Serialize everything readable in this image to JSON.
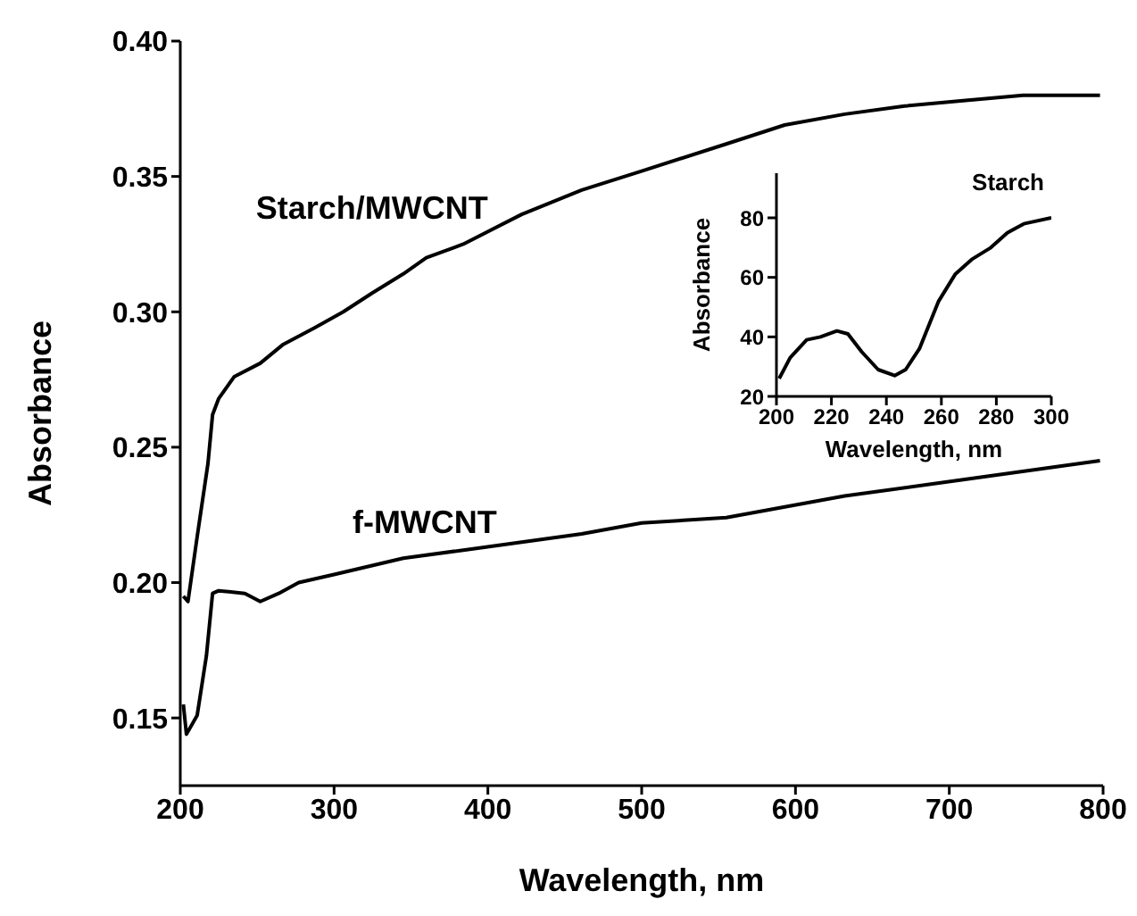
{
  "chart_data": [
    {
      "type": "line",
      "xlabel": "Wavelength, nm",
      "ylabel": "Absorbance",
      "xlim": [
        200,
        800
      ],
      "xticks": [
        200,
        300,
        400,
        500,
        600,
        700,
        800
      ],
      "ylim": [
        0.125,
        0.4
      ],
      "yticks": [
        0.15,
        {
          "value": 0.2,
          "label": "0.20"
        },
        0.25,
        {
          "value": 0.3,
          "label": "0.30"
        },
        0.35,
        {
          "value": 0.4,
          "label": "0.40"
        }
      ],
      "marker": "none",
      "series": [
        {
          "name": "Starch/MWCNT",
          "color": "#000000",
          "x": [
            202,
            205,
            211,
            218,
            221,
            225,
            235,
            252,
            267,
            287,
            306,
            325,
            345,
            360,
            384,
            422,
            461,
            500,
            555,
            593,
            632,
            671,
            709,
            748,
            798
          ],
          "values": [
            0.195,
            0.193,
            0.217,
            0.244,
            0.262,
            0.268,
            0.276,
            0.281,
            0.288,
            0.294,
            0.3,
            0.307,
            0.314,
            0.32,
            0.325,
            0.336,
            0.345,
            0.352,
            0.362,
            0.369,
            0.373,
            0.376,
            0.378,
            0.38,
            0.38
          ]
        },
        {
          "name": "f-MWCNT",
          "color": "#000000",
          "x": [
            202,
            204,
            211,
            217,
            221,
            225,
            242,
            252,
            264,
            277,
            300,
            345,
            384,
            461,
            500,
            555,
            632,
            709,
            798
          ],
          "values": [
            0.155,
            0.144,
            0.151,
            0.173,
            0.196,
            0.197,
            0.196,
            0.193,
            0.196,
            0.2,
            0.203,
            0.209,
            0.212,
            0.218,
            0.222,
            0.224,
            0.232,
            0.238,
            0.245
          ]
        }
      ]
    },
    {
      "type": "line",
      "xlabel": "Wavelength, nm",
      "ylabel": "Absorbance",
      "xlim": [
        200,
        300
      ],
      "xticks": [
        200,
        220,
        240,
        260,
        280,
        300
      ],
      "ylim": [
        20,
        95
      ],
      "yticks": [
        20,
        40,
        60,
        80
      ],
      "marker": "none",
      "series": [
        {
          "name": "Starch",
          "color": "#000000",
          "x": [
            201,
            205,
            211,
            216,
            222,
            226,
            231,
            237,
            243,
            247,
            252,
            259,
            265,
            271,
            278,
            284,
            290,
            300
          ],
          "values": [
            26,
            33,
            39,
            40,
            42,
            41,
            35,
            29,
            27,
            29,
            36,
            52,
            61,
            66,
            70,
            75,
            78,
            80
          ]
        }
      ]
    }
  ]
}
